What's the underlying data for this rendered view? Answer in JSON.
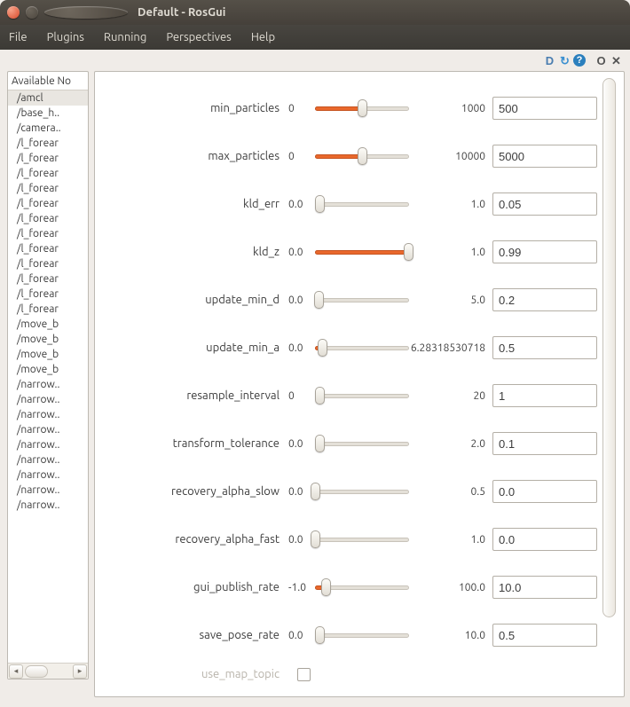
{
  "window": {
    "title": "Default - RosGui"
  },
  "menu": {
    "items": [
      "File",
      "Plugins",
      "Running",
      "Perspectives",
      "Help"
    ]
  },
  "sidebar": {
    "header": "Available No",
    "selected": "/amcl",
    "nodes": [
      "/amcl",
      "/base_h..",
      "/camera..",
      "/l_forear",
      "/l_forear",
      "/l_forear",
      "/l_forear",
      "/l_forear",
      "/l_forear",
      "/l_forear",
      "/l_forear",
      "/l_forear",
      "/l_forear",
      "/l_forear",
      "/l_forear",
      "/move_b",
      "/move_b",
      "/move_b",
      "/move_b",
      "/narrow..",
      "/narrow..",
      "/narrow..",
      "/narrow..",
      "/narrow..",
      "/narrow..",
      "/narrow..",
      "/narrow..",
      "/narrow.."
    ]
  },
  "params": [
    {
      "name": "min_particles",
      "min": "0",
      "max": "1000",
      "value": "500",
      "fill_pct": 50,
      "thumb_pct": 50
    },
    {
      "name": "max_particles",
      "min": "0",
      "max": "10000",
      "value": "5000",
      "fill_pct": 50,
      "thumb_pct": 50
    },
    {
      "name": "kld_err",
      "min": "0.0",
      "max": "1.0",
      "value": "0.05",
      "fill_pct": 5,
      "thumb_pct": 5
    },
    {
      "name": "kld_z",
      "min": "0.0",
      "max": "1.0",
      "value": "0.99",
      "fill_pct": 99,
      "thumb_pct": 99
    },
    {
      "name": "update_min_d",
      "min": "0.0",
      "max": "5.0",
      "value": "0.2",
      "fill_pct": 4,
      "thumb_pct": 4
    },
    {
      "name": "update_min_a",
      "min": "0.0",
      "max": "6.28318530718",
      "value": "0.5",
      "fill_pct": 8,
      "thumb_pct": 8
    },
    {
      "name": "resample_interval",
      "min": "0",
      "max": "20",
      "value": "1",
      "fill_pct": 5,
      "thumb_pct": 5
    },
    {
      "name": "transform_tolerance",
      "min": "0.0",
      "max": "2.0",
      "value": "0.1",
      "fill_pct": 5,
      "thumb_pct": 5
    },
    {
      "name": "recovery_alpha_slow",
      "min": "0.0",
      "max": "0.5",
      "value": "0.0",
      "fill_pct": 0,
      "thumb_pct": 0
    },
    {
      "name": "recovery_alpha_fast",
      "min": "0.0",
      "max": "1.0",
      "value": "0.0",
      "fill_pct": 0,
      "thumb_pct": 0
    },
    {
      "name": "gui_publish_rate",
      "min": "-1.0",
      "max": "100.0",
      "value": "10.0",
      "fill_pct": 11,
      "thumb_pct": 11
    },
    {
      "name": "save_pose_rate",
      "min": "0.0",
      "max": "10.0",
      "value": "0.5",
      "fill_pct": 5,
      "thumb_pct": 5
    }
  ],
  "checkbox_param": {
    "name": "use_map_topic",
    "checked": false
  },
  "colors": {
    "accent": "#e9682c",
    "panel_border": "#bdb9b2"
  }
}
